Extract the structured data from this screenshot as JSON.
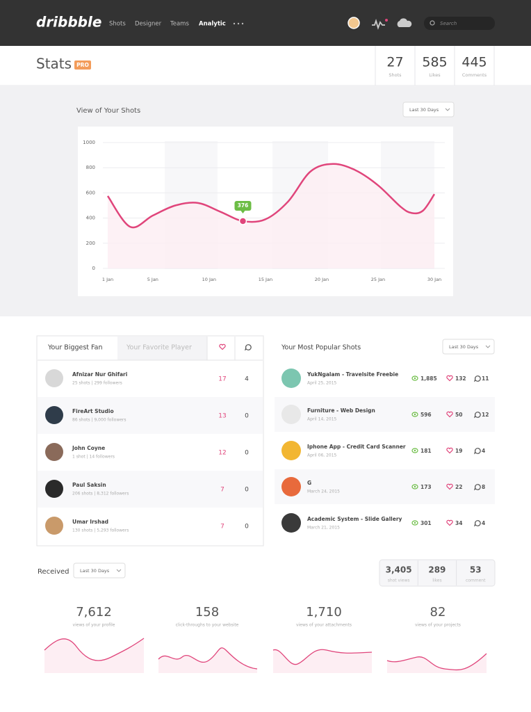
{
  "nav": {
    "logo": "dribbble",
    "links": [
      "Shots",
      "Designer",
      "Teams",
      "Analytic"
    ],
    "search": "Search"
  },
  "header": {
    "title": "Stats",
    "badge": "PRO",
    "stats": [
      {
        "value": 27,
        "label": "Shots"
      },
      {
        "value": 585,
        "label": "Likes"
      },
      {
        "value": 445,
        "label": "Comments"
      }
    ]
  },
  "views": {
    "title": "View of Your Shots",
    "range": "Last 30 Days",
    "chart": {
      "type": "line",
      "color": "#e0457b",
      "x": [
        1,
        3,
        5,
        7,
        9,
        11,
        13,
        15,
        17,
        19,
        21,
        23,
        25,
        27,
        28,
        29,
        30
      ],
      "values": [
        575,
        330,
        420,
        500,
        520,
        450,
        376,
        390,
        530,
        770,
        830,
        780,
        660,
        490,
        440,
        460,
        590
      ],
      "marker_index": 6,
      "xlim": [
        1,
        30
      ],
      "ylim": [
        0,
        1000
      ],
      "yticks": [
        0,
        200,
        400,
        600,
        800,
        1000
      ],
      "xticks": [
        {
          "value": 1,
          "label": "1 Jan"
        },
        {
          "value": 5,
          "label": "5 Jan"
        },
        {
          "value": 10,
          "label": "10 Jan"
        },
        {
          "value": 15,
          "label": "15 Jan"
        },
        {
          "value": 20,
          "label": "20 Jan"
        },
        {
          "value": 25,
          "label": "25 Jan"
        },
        {
          "value": 30,
          "label": "30 Jan"
        }
      ],
      "grid": true
    }
  },
  "fans": {
    "tabs": [
      "Your Biggest Fan",
      "Your Favorite Player"
    ],
    "rows": [
      {
        "name": "Afnizar Nur Ghifari",
        "meta": "25 shots | 299 followers",
        "likes": 17,
        "comments": 4
      },
      {
        "name": "FireArt Studio",
        "meta": "86 shots | 9,000 followers",
        "likes": 13,
        "comments": 0
      },
      {
        "name": "John Coyne",
        "meta": "1 shot | 14 followers",
        "likes": 12,
        "comments": 0
      },
      {
        "name": "Paul Saksin",
        "meta": "206 shots | 8,312 followers",
        "likes": 7,
        "comments": 0
      },
      {
        "name": "Umar Irshad",
        "meta": "130 shots | 5,293 followers",
        "likes": 7,
        "comments": 0
      }
    ]
  },
  "popular": {
    "title": "Your Most Popular Shots",
    "range": "Last 30 Days",
    "rows": [
      {
        "title": "YukNgalam - Travelsite Freebie",
        "date": "April 25, 2015",
        "views": "1,885",
        "likes": 132,
        "comments": 11
      },
      {
        "title": "Furniture - Web Design",
        "date": "April 14, 2015",
        "views": "596",
        "likes": 50,
        "comments": 12
      },
      {
        "title": "Iphone App - Credit Card Scanner",
        "date": "April 06, 2015",
        "views": "181",
        "likes": 19,
        "comments": 4
      },
      {
        "title": "G",
        "date": "March 24, 2015",
        "views": "173",
        "likes": 22,
        "comments": 8
      },
      {
        "title": "Academic System - Slide Gallery",
        "date": "March 21, 2015",
        "views": "301",
        "likes": 34,
        "comments": 4
      }
    ]
  },
  "received": {
    "title": "Received",
    "range": "Last 30 Days",
    "totals": [
      {
        "value": "3,405",
        "label": "shot views"
      },
      {
        "value": "289",
        "label": "likes"
      },
      {
        "value": "53",
        "label": "comment"
      }
    ],
    "cards": [
      {
        "value": "7,612",
        "label": "views of your profile"
      },
      {
        "value": "158",
        "label": "click-throughs to your website"
      },
      {
        "value": "1,710",
        "label": "views of your attachments"
      },
      {
        "value": "82",
        "label": "views of your projects"
      }
    ]
  }
}
